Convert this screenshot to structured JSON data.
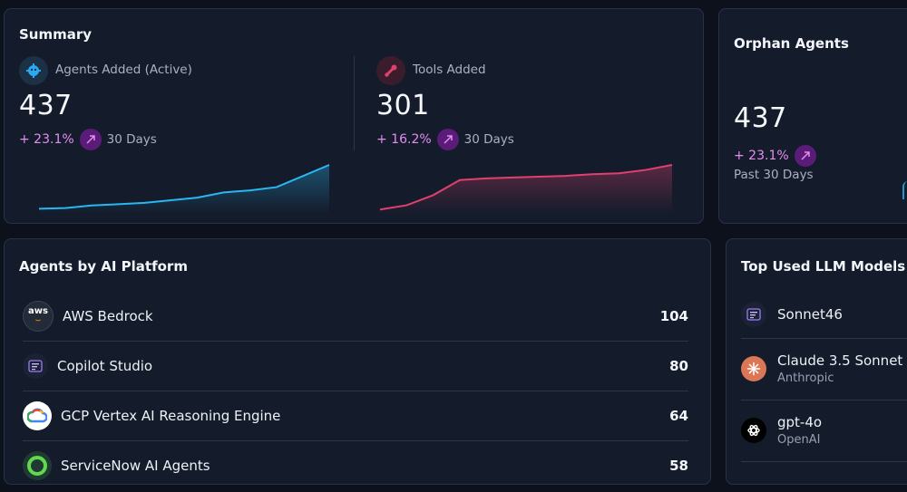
{
  "summary": {
    "title": "Summary",
    "agents": {
      "label": "Agents Added (Active)",
      "value": "437",
      "change": "+ 23.1%",
      "period": "30 Days",
      "icon": "robot-icon",
      "sparkline": [
        5,
        6,
        10,
        12,
        14,
        18,
        22,
        30,
        33,
        38,
        55,
        72
      ]
    },
    "tools": {
      "label": "Tools Added",
      "value": "301",
      "change": "+ 16.2%",
      "period": "30 Days",
      "icon": "wrench-icon",
      "sparkline": [
        3,
        8,
        20,
        38,
        40,
        41,
        42,
        43,
        45,
        46,
        50,
        56
      ]
    }
  },
  "orphan": {
    "title": "Orphan Agents",
    "value": "437",
    "change": "+ 23.1%",
    "period": "Past 30 Days"
  },
  "platforms": {
    "title": "Agents by AI Platform",
    "items": [
      {
        "name": "AWS Bedrock",
        "count": "104",
        "logo_text": "aws",
        "icon": "aws-logo-icon"
      },
      {
        "name": "Copilot Studio",
        "count": "80",
        "icon": "copilot-logo-icon"
      },
      {
        "name": "GCP Vertex AI Reasoning Engine",
        "count": "64",
        "icon": "gcp-logo-icon"
      },
      {
        "name": "ServiceNow AI Agents",
        "count": "58",
        "icon": "servicenow-logo-icon"
      }
    ]
  },
  "llm": {
    "title": "Top Used LLM Models",
    "items": [
      {
        "name": "Sonnet46",
        "sub": "",
        "icon": "model-chip-icon"
      },
      {
        "name": "Claude 3.5 Sonnet",
        "sub": "Anthropic",
        "icon": "anthropic-logo-icon"
      },
      {
        "name": "gpt-4o",
        "sub": "OpenAI",
        "icon": "openai-logo-icon"
      }
    ]
  },
  "colors": {
    "agents_line": "#2ab6f0",
    "tools_line": "#e0406e",
    "accent_pct": "#e58df1",
    "arrow_bg": "#5b1c79"
  }
}
